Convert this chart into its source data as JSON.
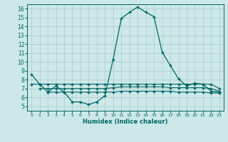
{
  "title": "",
  "xlabel": "Humidex (Indice chaleur)",
  "ylabel": "",
  "background_color": "#cce8e8",
  "grid_color": "#b0d0d0",
  "line_color": "#006666",
  "xlim": [
    -0.5,
    23.5
  ],
  "ylim": [
    4.5,
    16.5
  ],
  "yticks": [
    5,
    6,
    7,
    8,
    9,
    10,
    11,
    12,
    13,
    14,
    15,
    16
  ],
  "xticks": [
    0,
    1,
    2,
    3,
    4,
    5,
    6,
    7,
    8,
    9,
    10,
    11,
    12,
    13,
    14,
    15,
    16,
    17,
    18,
    19,
    20,
    21,
    22,
    23
  ],
  "line1_x": [
    0,
    1,
    2,
    3,
    4,
    5,
    6,
    7,
    8,
    9,
    10,
    11,
    12,
    13,
    14,
    15,
    16,
    17,
    18,
    19,
    20,
    21,
    22,
    23
  ],
  "line1_y": [
    8.6,
    7.5,
    6.6,
    7.3,
    6.6,
    5.5,
    5.5,
    5.2,
    5.5,
    6.2,
    10.3,
    14.9,
    15.6,
    16.2,
    15.6,
    15.1,
    11.1,
    9.6,
    8.1,
    7.3,
    7.6,
    7.5,
    6.7,
    6.6
  ],
  "line2_x": [
    0,
    1,
    2,
    3,
    4,
    5,
    6,
    7,
    8,
    9,
    10,
    11,
    12,
    13,
    14,
    15,
    16,
    17,
    18,
    19,
    20,
    21,
    22,
    23
  ],
  "line2_y": [
    7.5,
    7.5,
    7.5,
    7.5,
    7.5,
    7.5,
    7.5,
    7.5,
    7.5,
    7.5,
    7.5,
    7.5,
    7.5,
    7.5,
    7.5,
    7.5,
    7.5,
    7.5,
    7.5,
    7.5,
    7.5,
    7.5,
    7.5,
    7.0
  ],
  "line3_x": [
    1,
    2,
    3,
    4,
    5,
    6,
    7,
    8,
    9,
    10,
    11,
    12,
    13,
    14,
    15,
    16,
    17,
    18,
    19,
    20,
    21,
    22,
    23
  ],
  "line3_y": [
    7.0,
    7.0,
    7.0,
    7.0,
    7.0,
    7.0,
    7.0,
    7.0,
    7.0,
    7.1,
    7.2,
    7.2,
    7.2,
    7.2,
    7.2,
    7.2,
    7.1,
    7.1,
    7.1,
    7.1,
    7.1,
    7.0,
    6.7
  ],
  "line4_x": [
    2,
    3,
    4,
    5,
    6,
    7,
    8,
    9,
    10,
    11,
    12,
    13,
    14,
    15,
    16,
    17,
    18,
    19,
    20,
    21,
    22,
    23
  ],
  "line4_y": [
    6.6,
    6.6,
    6.6,
    6.6,
    6.6,
    6.6,
    6.6,
    6.6,
    6.6,
    6.7,
    6.7,
    6.7,
    6.7,
    6.7,
    6.7,
    6.7,
    6.6,
    6.6,
    6.6,
    6.6,
    6.5,
    6.5
  ]
}
